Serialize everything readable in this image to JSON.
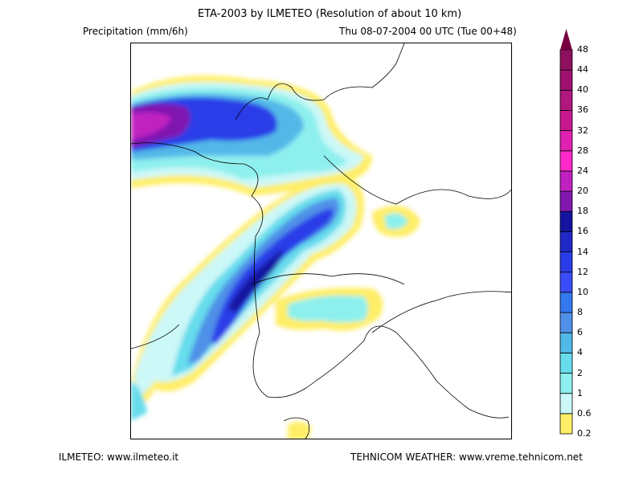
{
  "header": {
    "title": "ETA-2003 by ILMETEO (Resolution of about 10 km)",
    "variable": "Precipitation (mm/6h)",
    "valid_time": "Thu 08-07-2004 00 UTC (Tue 00+48)"
  },
  "footer": {
    "left": "ILMETEO: www.ilmeteo.it",
    "right": "TEHNICOM WEATHER: www.vreme.tehnicom.net"
  },
  "colorbar": {
    "labels": [
      "0.2",
      "0.6",
      "1",
      "2",
      "4",
      "6",
      "8",
      "10",
      "12",
      "14",
      "16",
      "18",
      "20",
      "24",
      "28",
      "32",
      "36",
      "40",
      "44",
      "48"
    ],
    "colors": [
      "#ffee66",
      "#ccf8f8",
      "#8ef0ee",
      "#66dcec",
      "#52b8e8",
      "#5090e8",
      "#3478f0",
      "#3a4cf8",
      "#2a3ce8",
      "#2028c8",
      "#1414a0",
      "#8018b0",
      "#c020c0",
      "#ff28c8",
      "#e020b0",
      "#c81890",
      "#b01880",
      "#a01070",
      "#901060"
    ],
    "arrow_color": "#780040"
  }
}
